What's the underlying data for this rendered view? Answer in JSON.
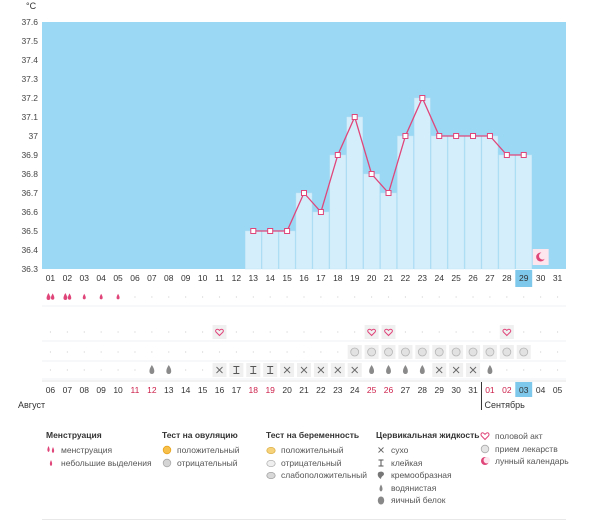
{
  "chart_data": {
    "type": "area",
    "unit": "°C",
    "y_ticks": [
      "37.6",
      "37.5",
      "37.4",
      "37.3",
      "37.2",
      "37.1",
      "37",
      "36.9",
      "36.8",
      "36.7",
      "36.6",
      "36.5",
      "36.4",
      "36.3"
    ],
    "ylim": [
      36.3,
      37.6
    ],
    "cycle_days": [
      "01",
      "02",
      "03",
      "04",
      "05",
      "06",
      "07",
      "08",
      "09",
      "10",
      "11",
      "12",
      "13",
      "14",
      "15",
      "16",
      "17",
      "18",
      "19",
      "20",
      "21",
      "22",
      "23",
      "24",
      "25",
      "26",
      "27",
      "28",
      "29",
      "30",
      "31"
    ],
    "current_cycle_day": "29",
    "next_cycle_marker_day": "30",
    "temperatures": [
      null,
      null,
      null,
      null,
      null,
      null,
      null,
      null,
      null,
      null,
      null,
      null,
      36.5,
      36.5,
      36.5,
      36.7,
      36.6,
      36.9,
      37.1,
      36.8,
      36.7,
      37.0,
      37.2,
      37.0,
      37.0,
      37.0,
      37.0,
      36.9,
      36.9,
      null,
      null
    ],
    "dates": [
      "06",
      "07",
      "08",
      "09",
      "10",
      "11",
      "12",
      "13",
      "14",
      "15",
      "16",
      "17",
      "18",
      "19",
      "20",
      "21",
      "22",
      "23",
      "24",
      "25",
      "26",
      "27",
      "28",
      "29",
      "30",
      "31",
      "01",
      "02",
      "03",
      "04",
      "05"
    ],
    "date_colors": [
      "#333",
      "#333",
      "#333",
      "#333",
      "#333",
      "#cc1f4a",
      "#cc1f4a",
      "#333",
      "#333",
      "#333",
      "#333",
      "#333",
      "#cc1f4a",
      "#cc1f4a",
      "#333",
      "#333",
      "#333",
      "#333",
      "#333",
      "#cc1f4a",
      "#cc1f4a",
      "#333",
      "#333",
      "#333",
      "#333",
      "#333",
      "#cc1f4a",
      "#cc1f4a",
      "#333",
      "#333",
      "#333"
    ],
    "today_date": "03",
    "month_labels": [
      "Август",
      "Сентябрь"
    ],
    "menstruation_row": [
      "heavy",
      "heavy",
      "light",
      "light",
      "light",
      null,
      null,
      null,
      null,
      null,
      null,
      null,
      null,
      null,
      null,
      null,
      null,
      null,
      null,
      null,
      null,
      null,
      null,
      null,
      null,
      null,
      null,
      null,
      null,
      null,
      null
    ],
    "intercourse_row": [
      null,
      null,
      null,
      null,
      null,
      null,
      null,
      null,
      null,
      null,
      "heart",
      null,
      null,
      null,
      null,
      null,
      null,
      null,
      null,
      "heart",
      "heart",
      null,
      null,
      null,
      null,
      null,
      null,
      "heart",
      null,
      null,
      null
    ],
    "pill_row": [
      null,
      null,
      null,
      null,
      null,
      null,
      null,
      null,
      null,
      null,
      null,
      null,
      null,
      null,
      null,
      null,
      null,
      null,
      "pill",
      "pill",
      "pill",
      "pill",
      "pill",
      "pill",
      "pill",
      "pill",
      "pill",
      "pill",
      "pill",
      null,
      null
    ],
    "mucus_row": [
      null,
      null,
      null,
      null,
      null,
      null,
      "drop",
      "drop",
      null,
      null,
      "dry",
      "sticky",
      "sticky",
      "sticky",
      "dry",
      "dry",
      "dry",
      "dry",
      "dry",
      "drop",
      "drop",
      "drop",
      "drop",
      "dry",
      "dry",
      "dry",
      "drop",
      null,
      null,
      null,
      null
    ],
    "colors": {
      "band": "#9ad8f3",
      "bar": "#d4effb",
      "bar_edge": "#bfe2f5",
      "line": "#e0457a",
      "today": "#7ec8eb",
      "grid": "#eef2f5"
    }
  },
  "legend": {
    "menstruation": {
      "title": "Менструация",
      "items": [
        "менструация",
        "небольшие выделения"
      ]
    },
    "ovulation": {
      "title": "Тест на овуляцию",
      "items": [
        "положительный",
        "отрицательный"
      ]
    },
    "pregnancy": {
      "title": "Тест на беременность",
      "items": [
        "положительный",
        "отрицательный",
        "слабоположительный"
      ]
    },
    "mucus": {
      "title": "Цервикальная жидкость",
      "items": [
        "сухо",
        "клейкая",
        "кремообразная",
        "водянистая",
        "яичный белок"
      ]
    },
    "other": {
      "items": [
        "половой акт",
        "прием лекарств",
        "лунный календарь"
      ]
    }
  }
}
